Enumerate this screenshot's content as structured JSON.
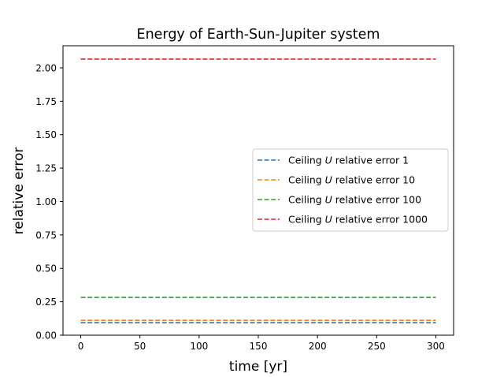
{
  "chart_data": {
    "type": "line",
    "title": "Energy of Earth-Sun-Jupiter system",
    "xlabel": "time [yr]",
    "ylabel": "relative error",
    "xlim": [
      -15,
      315
    ],
    "ylim": [
      0,
      2.165
    ],
    "xticks": [
      0,
      50,
      100,
      150,
      200,
      250,
      300
    ],
    "xtick_labels": [
      "0",
      "50",
      "100",
      "150",
      "200",
      "250",
      "300"
    ],
    "yticks": [
      0,
      0.25,
      0.5,
      0.75,
      1.0,
      1.25,
      1.5,
      1.75,
      2.0
    ],
    "ytick_labels": [
      "0.00",
      "0.25",
      "0.50",
      "0.75",
      "1.00",
      "1.25",
      "1.50",
      "1.75",
      "2.00"
    ],
    "grid": false,
    "legend_position": "center-right",
    "series": [
      {
        "name": "Ceiling U relative error 1",
        "legend_prefix": "Ceiling ",
        "legend_var": "U",
        "legend_suffix": " relative error 1",
        "color": "#1f77b4",
        "linestyle": "dashed",
        "x": [
          0,
          300
        ],
        "y": [
          0.093,
          0.093
        ]
      },
      {
        "name": "Ceiling U relative error 10",
        "legend_prefix": "Ceiling ",
        "legend_var": "U",
        "legend_suffix": " relative error 10",
        "color": "#ff7f0e",
        "linestyle": "dashed",
        "x": [
          0,
          300
        ],
        "y": [
          0.111,
          0.111
        ]
      },
      {
        "name": "Ceiling U relative error 100",
        "legend_prefix": "Ceiling ",
        "legend_var": "U",
        "legend_suffix": " relative error 100",
        "color": "#2ca02c",
        "linestyle": "dashed",
        "x": [
          0,
          300
        ],
        "y": [
          0.283,
          0.283
        ]
      },
      {
        "name": "Ceiling U relative error 1000",
        "legend_prefix": "Ceiling ",
        "legend_var": "U",
        "legend_suffix": " relative error 1000",
        "color": "#d62728",
        "linestyle": "dashed",
        "x": [
          0,
          300
        ],
        "y": [
          2.065,
          2.065
        ]
      }
    ]
  }
}
